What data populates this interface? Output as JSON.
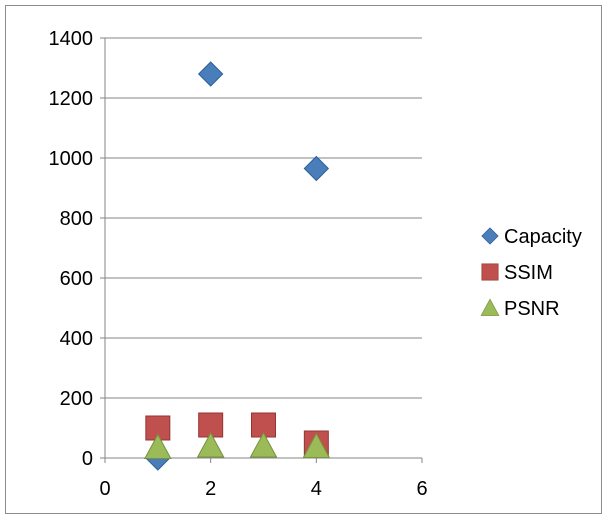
{
  "chart_data": {
    "type": "scatter",
    "xlim": [
      0,
      6
    ],
    "ylim": [
      0,
      1400
    ],
    "x_ticks": [
      0,
      2,
      4,
      6
    ],
    "y_ticks": [
      0,
      200,
      400,
      600,
      800,
      1000,
      1200,
      1400
    ],
    "grid": "horizontal",
    "legend_position": "right",
    "series": [
      {
        "name": "Capacity",
        "marker": "diamond",
        "color": "#4a7ebb",
        "points": [
          [
            1,
            0
          ],
          [
            2,
            1280
          ],
          [
            4,
            965
          ]
        ]
      },
      {
        "name": "SSIM",
        "marker": "square",
        "color": "#c0504d",
        "points": [
          [
            1,
            100
          ],
          [
            2,
            110
          ],
          [
            3,
            110
          ],
          [
            4,
            50
          ]
        ]
      },
      {
        "name": "PSNR",
        "marker": "triangle",
        "color": "#9bbb59",
        "points": [
          [
            1,
            35
          ],
          [
            2,
            40
          ],
          [
            3,
            40
          ],
          [
            4,
            38
          ]
        ]
      }
    ]
  }
}
